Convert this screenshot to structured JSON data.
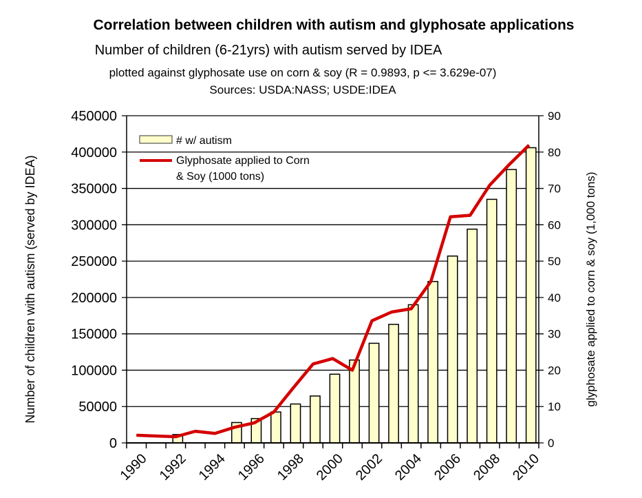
{
  "chart_data": {
    "type": "bar",
    "title": "Correlation between children with autism and glyphosate applications",
    "subtitle": "Number of children (6-21yrs) with autism served by IDEA",
    "subtitle2": "plotted against glyphosate use on corn & soy (R = 0.9893, p <= 3.629e-07)",
    "sources": "Sources: USDA:NASS; USDE:IDEA",
    "ylabel": "Number of children with autism (served by IDEA)",
    "y2label": "glyphosate applied to corn & soy (1,000 tons)",
    "ylim": [
      0,
      450000
    ],
    "y2lim": [
      0,
      90
    ],
    "yticks": [
      "0",
      "50000",
      "100000",
      "150000",
      "200000",
      "250000",
      "300000",
      "350000",
      "400000",
      "450000"
    ],
    "y2ticks": [
      "0",
      "10",
      "20",
      "30",
      "40",
      "50",
      "60",
      "70",
      "80",
      "90"
    ],
    "categories": [
      1990,
      1991,
      1992,
      1993,
      1994,
      1995,
      1996,
      1997,
      1998,
      1999,
      2000,
      2001,
      2002,
      2003,
      2004,
      2005,
      2006,
      2007,
      2008,
      2009,
      2010
    ],
    "xtick_labels": [
      "1990",
      "1992",
      "1994",
      "1996",
      "1998",
      "2000",
      "2002",
      "2004",
      "2006",
      "2008",
      "2010"
    ],
    "grid": true,
    "legend_position": "top-left",
    "series": [
      {
        "name": "# w/ autism",
        "type": "bar",
        "axis": "left",
        "color": "#ffffcc",
        "values": [
          null,
          null,
          11500,
          null,
          null,
          28000,
          33500,
          42500,
          53500,
          64500,
          94500,
          114000,
          137000,
          163000,
          190000,
          222000,
          257000,
          294000,
          335000,
          376000,
          406000
        ]
      },
      {
        "name": "Glyphosate applied to Corn & Soy (1000 tons)",
        "legend_lines": [
          "Glyphosate applied to Corn",
          "& Soy (1000 tons)"
        ],
        "type": "line",
        "axis": "right",
        "color": "#d40000",
        "values": [
          2.1,
          1.9,
          1.7,
          3.2,
          2.6,
          4.3,
          5.5,
          8.5,
          15.2,
          21.7,
          23.2,
          20.0,
          33.6,
          36.0,
          36.9,
          44.4,
          62.2,
          62.6,
          70.9,
          76.6,
          81.9
        ]
      }
    ]
  }
}
